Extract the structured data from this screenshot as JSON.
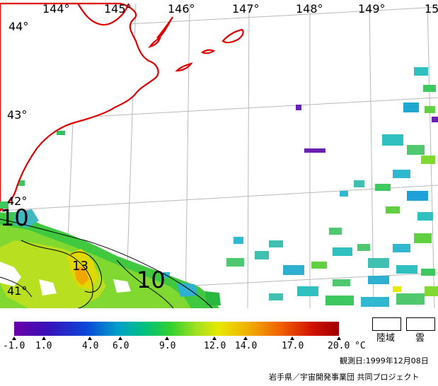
{
  "map": {
    "longitude_labels": [
      "144°",
      "145°",
      "146°",
      "147°",
      "148°",
      "149°",
      "15"
    ],
    "latitude_labels": [
      "44°",
      "43°",
      "42°",
      "41°"
    ],
    "contour_labels": [
      "10",
      "13",
      "10"
    ]
  },
  "legend": {
    "tick_labels": [
      "-1.0",
      "1.0",
      "4.0",
      "6.0",
      "9.0",
      "12.0",
      "14.0",
      "17.0",
      "20.0"
    ],
    "unit": "°C",
    "land_label": "陸域",
    "cloud_label": "雲",
    "colors": {
      "min": "#6a00a8",
      "low": "#0b45d8",
      "mid": "#30d030",
      "high": "#e8e800",
      "warm": "#f06000",
      "max": "#a00000",
      "coastline": "#e00000"
    }
  },
  "footer": {
    "observation_date": "観測日:1999年12月08日",
    "credit": "岩手県／宇宙開発事業団 共同プロジェクト"
  }
}
